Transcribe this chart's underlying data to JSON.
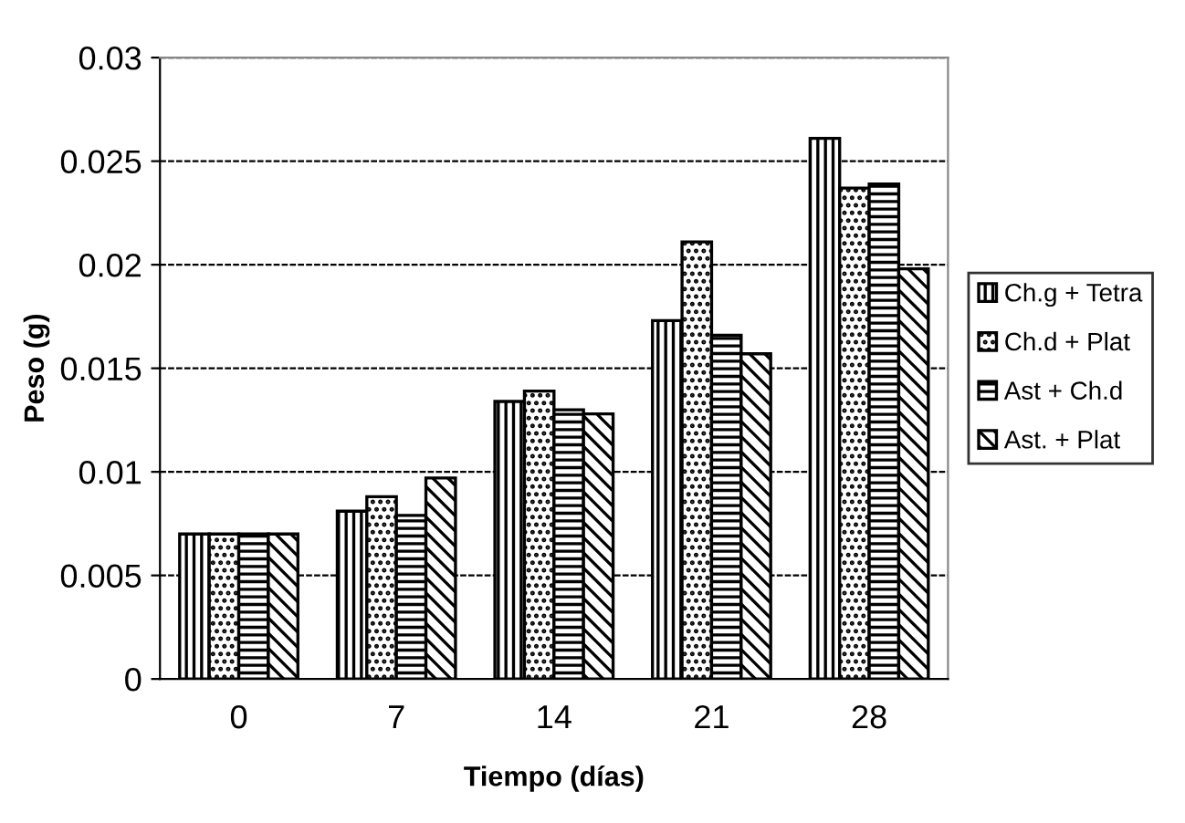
{
  "chart_data": {
    "type": "bar",
    "xlabel": "Tiempo (días)",
    "ylabel": "Peso (g)",
    "categories": [
      "0",
      "7",
      "14",
      "21",
      "28"
    ],
    "series": [
      {
        "name": "Ch.g + Tetra",
        "color": "#000000",
        "values": [
          0.007,
          0.0081,
          0.0134,
          0.0173,
          0.0261
        ]
      },
      {
        "name": "Ch.d + Plat",
        "color": "#000000",
        "values": [
          0.007,
          0.0088,
          0.0139,
          0.0211,
          0.0237
        ]
      },
      {
        "name": "Ast + Ch.d",
        "color": "#000000",
        "values": [
          0.007,
          0.0079,
          0.013,
          0.0166,
          0.0239
        ]
      },
      {
        "name": "Ast. + Plat",
        "color": "#000000",
        "values": [
          0.007,
          0.0097,
          0.0128,
          0.0157,
          0.0198
        ]
      }
    ],
    "ylim": [
      0,
      0.03
    ],
    "yticks": [
      0,
      0.005,
      0.01,
      0.015,
      0.02,
      0.025,
      0.03
    ],
    "grid": "y",
    "legend": "right"
  }
}
